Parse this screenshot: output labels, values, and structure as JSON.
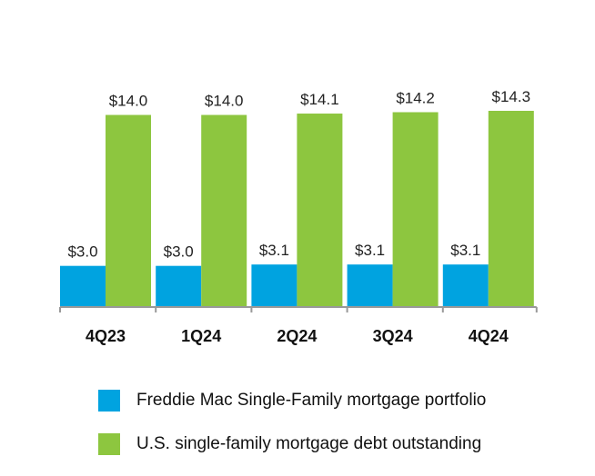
{
  "chart_data": {
    "type": "bar",
    "categories": [
      "4Q23",
      "1Q24",
      "2Q24",
      "3Q24",
      "4Q24"
    ],
    "series": [
      {
        "name": "Freddie Mac Single-Family mortgage portfolio",
        "values": [
          3.0,
          3.0,
          3.1,
          3.1,
          3.1
        ],
        "labels": [
          "$3.0",
          "$3.0",
          "$3.1",
          "$3.1",
          "$3.1"
        ],
        "color": "#00a3e0"
      },
      {
        "name": "U.S. single-family mortgage debt outstanding",
        "values": [
          14.0,
          14.0,
          14.1,
          14.2,
          14.3
        ],
        "labels": [
          "$14.0",
          "$14.0",
          "$14.1",
          "$14.2",
          "$14.3"
        ],
        "color": "#8dc63f"
      }
    ],
    "title": "",
    "xlabel": "",
    "ylabel": "",
    "ylim": [
      0,
      14.3
    ],
    "grid": false,
    "legend_position": "bottom"
  }
}
